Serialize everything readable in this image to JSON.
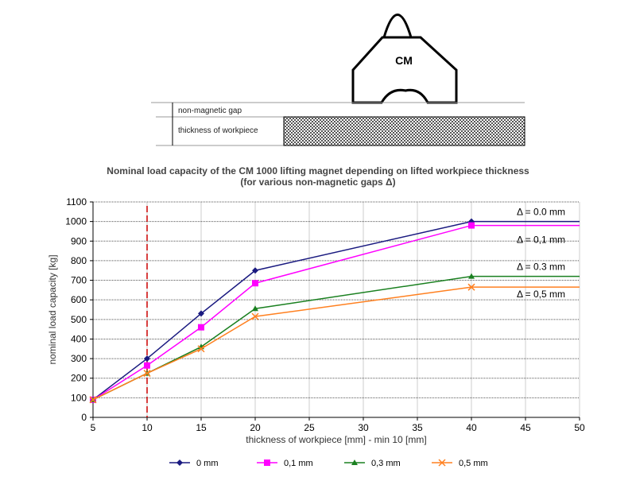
{
  "diagram": {
    "magnet_label": "CM",
    "gap_label": "non-magnetic gap",
    "thickness_label": "thickness of workpiece"
  },
  "chart_data": {
    "type": "line",
    "title": "Nominal load capacity of the CM 1000 lifting magnet depending on lifted workpiece thickness",
    "subtitle": "(for various non-magnetic gaps Δ)",
    "xlabel": "thickness of workpiece [mm] - min 10 [mm]",
    "ylabel": "nominal load capacity [kg]",
    "xlim": [
      5,
      50
    ],
    "ylim": [
      0,
      1100
    ],
    "xticks": [
      5,
      10,
      15,
      20,
      25,
      30,
      35,
      40,
      45,
      50
    ],
    "yticks": [
      0,
      100,
      200,
      300,
      400,
      500,
      600,
      700,
      800,
      900,
      1000,
      1100
    ],
    "grid": true,
    "legend": "bottom",
    "x": [
      5,
      10,
      15,
      20,
      40,
      50
    ],
    "reference_line_x": 10,
    "series": [
      {
        "name": "0 mm",
        "annotation": "Δ = 0.0 mm",
        "color": "#1a1a80",
        "marker": "diamond",
        "values": [
          90,
          300,
          530,
          750,
          1000,
          1000
        ]
      },
      {
        "name": "0,1 mm",
        "annotation": "Δ = 0,1 mm",
        "color": "#ff00ff",
        "marker": "square",
        "values": [
          90,
          265,
          460,
          685,
          980,
          980
        ]
      },
      {
        "name": "0,3 mm",
        "annotation": "Δ = 0.3 mm",
        "color": "#1a8020",
        "marker": "triangle",
        "values": [
          90,
          225,
          360,
          555,
          720,
          720
        ]
      },
      {
        "name": "0,5 mm",
        "annotation": "Δ = 0,5 mm",
        "color": "#ff8020",
        "marker": "x",
        "values": [
          90,
          225,
          350,
          515,
          665,
          665
        ]
      }
    ]
  }
}
